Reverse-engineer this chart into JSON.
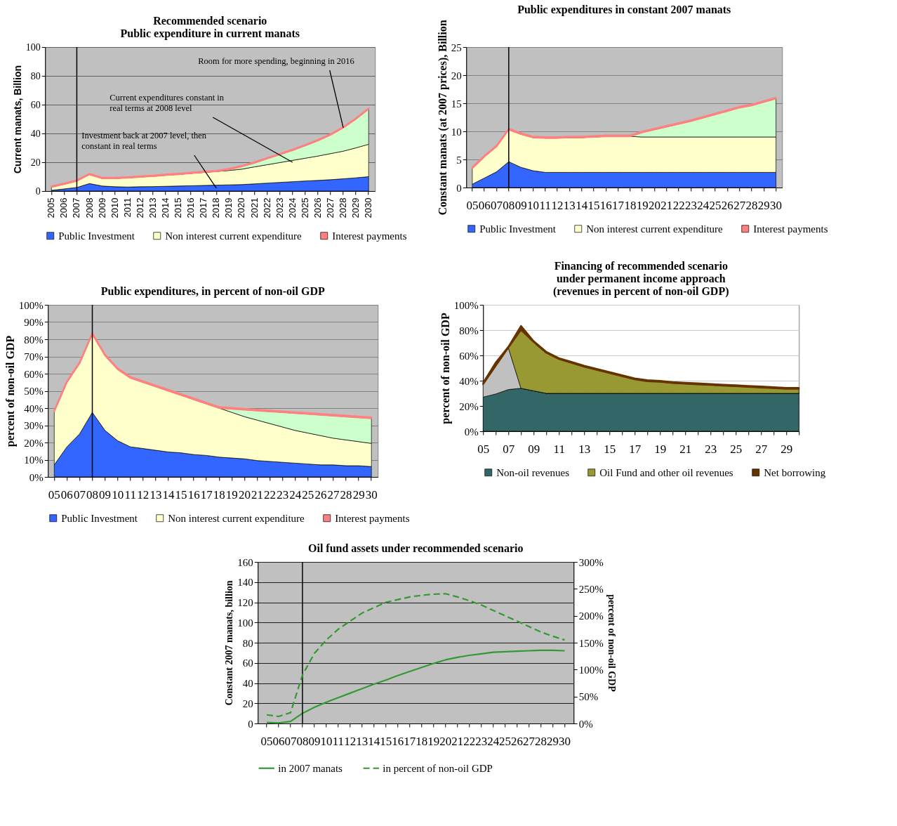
{
  "chart_data": [
    {
      "type": "area",
      "title": "Recommended scenario\nPublic expenditure in current manats",
      "ylabel": "Current manats, Billion",
      "stacked": true,
      "grid": "y",
      "legend": "bottom",
      "categories": [
        "2005",
        "2006",
        "2007",
        "2008",
        "2009",
        "2010",
        "2011",
        "2012",
        "2013",
        "2014",
        "2015",
        "2016",
        "2017",
        "2018",
        "2019",
        "2020",
        "2021",
        "2022",
        "2023",
        "2024",
        "2025",
        "2026",
        "2027",
        "2028",
        "2029",
        "2030"
      ],
      "ylim": [
        0,
        100
      ],
      "yticks": [
        0,
        20,
        40,
        60,
        80,
        100
      ],
      "series": [
        {
          "name": "Public Investment",
          "color": "#3366ff",
          "values": [
            0.5,
            1.5,
            2.5,
            5.2,
            3.5,
            3,
            2.8,
            3,
            3.1,
            3.3,
            3.5,
            3.7,
            3.9,
            4.1,
            4.3,
            4.5,
            5,
            5.5,
            6,
            6.5,
            7,
            7.4,
            7.9,
            8.5,
            9.2,
            10
          ]
        },
        {
          "name": "Non interest current expenditure",
          "color": "#ffffcc",
          "values": [
            2.3,
            3.3,
            4.5,
            6.3,
            5.3,
            5.8,
            6.4,
            6.8,
            7.2,
            7.7,
            8.1,
            8.6,
            9.1,
            9.5,
            10,
            10.7,
            11.8,
            12.8,
            13.8,
            14.8,
            15.8,
            16.9,
            18.1,
            19.2,
            20.8,
            22.5
          ]
        },
        {
          "color": "#ccffcc",
          "values": [
            0,
            0,
            0,
            0,
            0,
            0,
            0,
            0,
            0,
            0,
            0,
            0,
            0,
            0,
            0.7,
            1.8,
            2.7,
            4.2,
            5.5,
            7,
            8.7,
            10.7,
            13,
            16.3,
            20,
            24.5
          ]
        },
        {
          "name": "Interest payments",
          "color": "#ff8080",
          "values": [
            0.6,
            0.6,
            0.6,
            0.6,
            0.6,
            0.6,
            0.6,
            0.6,
            0.6,
            0.6,
            0.6,
            0.6,
            0.6,
            0.6,
            0.6,
            0.6,
            0.6,
            0.6,
            0.6,
            0.6,
            0.6,
            0.6,
            0.6,
            0.6,
            0.6,
            0.6
          ]
        }
      ],
      "ref_lines": [
        {
          "axis": "x",
          "value": "2007"
        }
      ],
      "annotations": [
        {
          "text": "Room for more spending, beginning in 2016",
          "x": "2028",
          "y": 44
        },
        {
          "text": "Current expenditures constant in real terms at 2008 level",
          "x": "2024",
          "y": 20
        },
        {
          "text": "Investment back at 2007 level, then constant in real terms",
          "x": "2018",
          "y": 2
        }
      ]
    },
    {
      "type": "area",
      "title": "Public expenditures in constant 2007 manats",
      "ylabel": "Constant manats (at  2007 prices), Billion",
      "stacked": true,
      "grid": "y",
      "legend": "bottom",
      "categories": [
        "05",
        "06",
        "07",
        "08",
        "09",
        "10",
        "11",
        "12",
        "13",
        "14",
        "15",
        "16",
        "17",
        "18",
        "19",
        "20",
        "21",
        "22",
        "23",
        "24",
        "25",
        "26",
        "27",
        "28",
        "29",
        "30"
      ],
      "ylim": [
        0,
        25
      ],
      "yticks": [
        0,
        5,
        10,
        15,
        20,
        25
      ],
      "series": [
        {
          "name": "Public Investment",
          "color": "#3366ff",
          "values": [
            0.6,
            1.7,
            2.8,
            4.6,
            3.6,
            3.0,
            2.7,
            2.7,
            2.7,
            2.7,
            2.7,
            2.7,
            2.7,
            2.7,
            2.7,
            2.7,
            2.7,
            2.7,
            2.7,
            2.7,
            2.7,
            2.7,
            2.7,
            2.7,
            2.7,
            2.7
          ]
        },
        {
          "name": "Non interest current expenditure",
          "color": "#ffffcc",
          "values": [
            2.8,
            3.8,
            4.5,
            5.7,
            5.9,
            5.9,
            6.1,
            6.1,
            6.2,
            6.2,
            6.3,
            6.4,
            6.4,
            6.4,
            6.3,
            6.3,
            6.3,
            6.3,
            6.3,
            6.3,
            6.3,
            6.3,
            6.3,
            6.3,
            6.3,
            6.3
          ]
        },
        {
          "color": "#ccffcc",
          "values": [
            0,
            0,
            0,
            0,
            0,
            0,
            0,
            0,
            0,
            0,
            0,
            0,
            0,
            0,
            0.8,
            1.3,
            1.8,
            2.3,
            2.8,
            3.4,
            4.0,
            4.6,
            5.2,
            5.6,
            6.2,
            6.8
          ]
        },
        {
          "name": "Interest payments",
          "color": "#ff8080",
          "values": [
            0.2,
            0.2,
            0.2,
            0.2,
            0.2,
            0.2,
            0.2,
            0.2,
            0.2,
            0.2,
            0.2,
            0.2,
            0.2,
            0.2,
            0.2,
            0.2,
            0.2,
            0.2,
            0.2,
            0.2,
            0.2,
            0.2,
            0.2,
            0.2,
            0.2,
            0.2
          ]
        }
      ],
      "ref_lines": [
        {
          "axis": "x",
          "value": "08"
        }
      ]
    },
    {
      "type": "area",
      "title": "Public expenditures, in percent of non-oil GDP",
      "ylabel": "percent of non-oil GDP",
      "stacked": true,
      "grid": "y",
      "legend": "bottom",
      "categories": [
        "05",
        "06",
        "07",
        "08",
        "09",
        "10",
        "11",
        "12",
        "13",
        "14",
        "15",
        "16",
        "17",
        "18",
        "19",
        "20",
        "21",
        "22",
        "23",
        "24",
        "25",
        "26",
        "27",
        "28",
        "29",
        "30"
      ],
      "ylim": [
        0,
        100
      ],
      "yticks": [
        {
          "value": 0,
          "label": "0%"
        },
        {
          "value": 10,
          "label": "10%"
        },
        {
          "value": 20,
          "label": "20%"
        },
        {
          "value": 30,
          "label": "30%"
        },
        {
          "value": 40,
          "label": "40%"
        },
        {
          "value": 50,
          "label": "50%"
        },
        {
          "value": 60,
          "label": "60%"
        },
        {
          "value": 70,
          "label": "70%"
        },
        {
          "value": 80,
          "label": "80%"
        },
        {
          "value": 90,
          "label": "90%"
        },
        {
          "value": 100,
          "label": "100%"
        }
      ],
      "series": [
        {
          "name": "Public Investment",
          "color": "#3366ff",
          "values": [
            7,
            17.5,
            25,
            37.5,
            27,
            21,
            17.5,
            16.5,
            15.5,
            14.5,
            14,
            13,
            12.5,
            11.5,
            11,
            10.5,
            9.5,
            9,
            8.5,
            8,
            7.5,
            7,
            7,
            6.5,
            6.5,
            6
          ]
        },
        {
          "name": "Non interest current expenditure",
          "color": "#ffffcc",
          "values": [
            31,
            37.5,
            41,
            45.5,
            43.5,
            41.5,
            40,
            38.5,
            37,
            35.5,
            33.5,
            32,
            30,
            28.5,
            26.5,
            24.5,
            23.5,
            22,
            20.5,
            19,
            18,
            17,
            15.5,
            15,
            14,
            13.5
          ]
        },
        {
          "color": "#ccffcc",
          "values": [
            0,
            0,
            0,
            0,
            0,
            0,
            0,
            0,
            0,
            0,
            0,
            0,
            0,
            0,
            2,
            4,
            5.5,
            7,
            8.5,
            10,
            11,
            12,
            13,
            13.5,
            14,
            14.5
          ]
        },
        {
          "name": "Interest payments",
          "color": "#ff8080",
          "values": [
            0.7,
            0.7,
            0.7,
            0.7,
            0.7,
            0.7,
            0.7,
            0.7,
            0.7,
            0.7,
            0.7,
            0.7,
            0.7,
            0.7,
            0.7,
            0.7,
            0.7,
            0.7,
            0.7,
            0.7,
            0.7,
            0.7,
            0.7,
            0.7,
            0.7,
            0.7
          ]
        }
      ],
      "ref_lines": [
        {
          "axis": "x",
          "value": "08"
        }
      ]
    },
    {
      "type": "area",
      "title": "Financing of recommended scenario\nunder permanent income approach\n(revenues in percent of non-oil GDP)",
      "ylabel": "percent of non-oil GDP",
      "stacked": true,
      "grid": "y",
      "legend": "bottom",
      "categories": [
        "05",
        null,
        "07",
        null,
        "09",
        null,
        "11",
        null,
        "13",
        null,
        "15",
        null,
        "17",
        null,
        "19",
        null,
        "21",
        null,
        "23",
        null,
        "25",
        null,
        "27",
        null,
        "29",
        null
      ],
      "ylim": [
        0,
        100
      ],
      "yticks": [
        {
          "value": 0,
          "label": "0%"
        },
        {
          "value": 20,
          "label": "20%"
        },
        {
          "value": 40,
          "label": "40%"
        },
        {
          "value": 60,
          "label": "60%"
        },
        {
          "value": 80,
          "label": "80%"
        },
        {
          "value": 100,
          "label": "100%"
        }
      ],
      "series": [
        {
          "name": "Non-oil revenues",
          "color": "#336666",
          "values": [
            27,
            29.5,
            33,
            34,
            32,
            30,
            30,
            30,
            30,
            30,
            30,
            30,
            30,
            30,
            30,
            30,
            30,
            30,
            30,
            30,
            30,
            30,
            30,
            30,
            30,
            30
          ]
        },
        {
          "color": "#c0c0c0",
          "values": [
            10,
            22,
            33,
            0,
            0,
            0,
            0,
            0,
            0,
            0,
            0,
            0,
            0,
            0,
            0,
            0,
            0,
            0,
            0,
            0,
            0,
            0,
            0,
            0,
            0,
            0
          ]
        },
        {
          "name": "Oil Fund and other oil revenues",
          "color": "#999933",
          "values": [
            0,
            0,
            0,
            46,
            38.5,
            32,
            27,
            24,
            21,
            18.5,
            16,
            13.5,
            11,
            9.5,
            9,
            8,
            7.5,
            7,
            6.5,
            6,
            5.5,
            5,
            4.5,
            4,
            3.5,
            3.5
          ]
        },
        {
          "name": "Net borrowing",
          "color": "#663300",
          "values": [
            1.5,
            3,
            1,
            3.5,
            1,
            1,
            1,
            1,
            1,
            1,
            1,
            1,
            1,
            1,
            1,
            1,
            1,
            1,
            1,
            1,
            1,
            1,
            1,
            1,
            1,
            1
          ]
        }
      ]
    },
    {
      "type": "line",
      "title": "Oil fund assets under recommended scenario",
      "ylabel": "Constant 2007 manats, billion",
      "y2label": "percent of non-oil GDP",
      "grid": "y",
      "legend": "bottom",
      "categories": [
        "05",
        "06",
        "07",
        "08",
        "09",
        "10",
        "11",
        "12",
        "13",
        "14",
        "15",
        "16",
        "17",
        "18",
        "19",
        "20",
        "21",
        "22",
        "23",
        "24",
        "25",
        "26",
        "27",
        "28",
        "29",
        "30"
      ],
      "ylim": [
        0,
        160
      ],
      "yticks": [
        0,
        20,
        40,
        60,
        80,
        100,
        120,
        140,
        160
      ],
      "y2lim": [
        0,
        300
      ],
      "y2ticks": [
        {
          "value": 0,
          "label": "0%"
        },
        {
          "value": 50,
          "label": "50%"
        },
        {
          "value": 100,
          "label": "100%"
        },
        {
          "value": 150,
          "label": "150%"
        },
        {
          "value": 200,
          "label": "200%"
        },
        {
          "value": 250,
          "label": "250%"
        },
        {
          "value": 300,
          "label": "300%"
        }
      ],
      "series": [
        {
          "name": "in 2007 manats",
          "color": "#339933",
          "line_style": "solid",
          "values": [
            1,
            0.5,
            2,
            10,
            16,
            21,
            25.5,
            30,
            34.5,
            39,
            43,
            47.5,
            51.5,
            55.5,
            59.5,
            63,
            65.5,
            67.5,
            69,
            70.5,
            71,
            71.5,
            72,
            72.5,
            72.5,
            72
          ]
        },
        {
          "name": "in percent of non-oil GDP",
          "color": "#339933",
          "line_style": "dashed",
          "axis": "y2",
          "values": [
            16,
            13,
            20,
            90,
            130,
            155,
            175,
            190,
            205,
            215,
            225,
            230,
            235,
            238,
            240,
            241,
            235,
            228,
            220,
            210,
            200,
            190,
            180,
            170,
            162,
            155
          ]
        }
      ],
      "ref_lines": [
        {
          "axis": "x",
          "value": "08"
        }
      ]
    }
  ]
}
